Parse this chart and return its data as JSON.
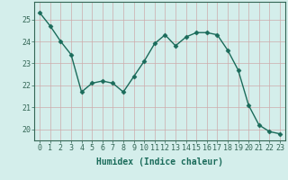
{
  "x": [
    0,
    1,
    2,
    3,
    4,
    5,
    6,
    7,
    8,
    9,
    10,
    11,
    12,
    13,
    14,
    15,
    16,
    17,
    18,
    19,
    20,
    21,
    22,
    23
  ],
  "y": [
    25.3,
    24.7,
    24.0,
    23.4,
    21.7,
    22.1,
    22.2,
    22.1,
    21.7,
    22.4,
    23.1,
    23.9,
    24.3,
    23.8,
    24.2,
    24.4,
    24.4,
    24.3,
    23.6,
    22.7,
    21.1,
    20.2,
    19.9,
    19.8
  ],
  "line_color": "#1a6b5a",
  "marker": "D",
  "marker_size": 2.5,
  "line_width": 1.0,
  "bg_color": "#d4eeeb",
  "grid_major_color": "#c8c8c8",
  "grid_minor_color": "#e0d8d8",
  "xlabel": "Humidex (Indice chaleur)",
  "xlabel_fontsize": 7,
  "tick_fontsize": 6,
  "ylim": [
    19.5,
    25.8
  ],
  "xlim": [
    -0.5,
    23.5
  ],
  "yticks": [
    20,
    21,
    22,
    23,
    24,
    25
  ],
  "xticks": [
    0,
    1,
    2,
    3,
    4,
    5,
    6,
    7,
    8,
    9,
    10,
    11,
    12,
    13,
    14,
    15,
    16,
    17,
    18,
    19,
    20,
    21,
    22,
    23
  ],
  "spine_color": "#336655",
  "axis_color": "#336655",
  "tick_color": "#336655",
  "label_color": "#1a6b5a"
}
